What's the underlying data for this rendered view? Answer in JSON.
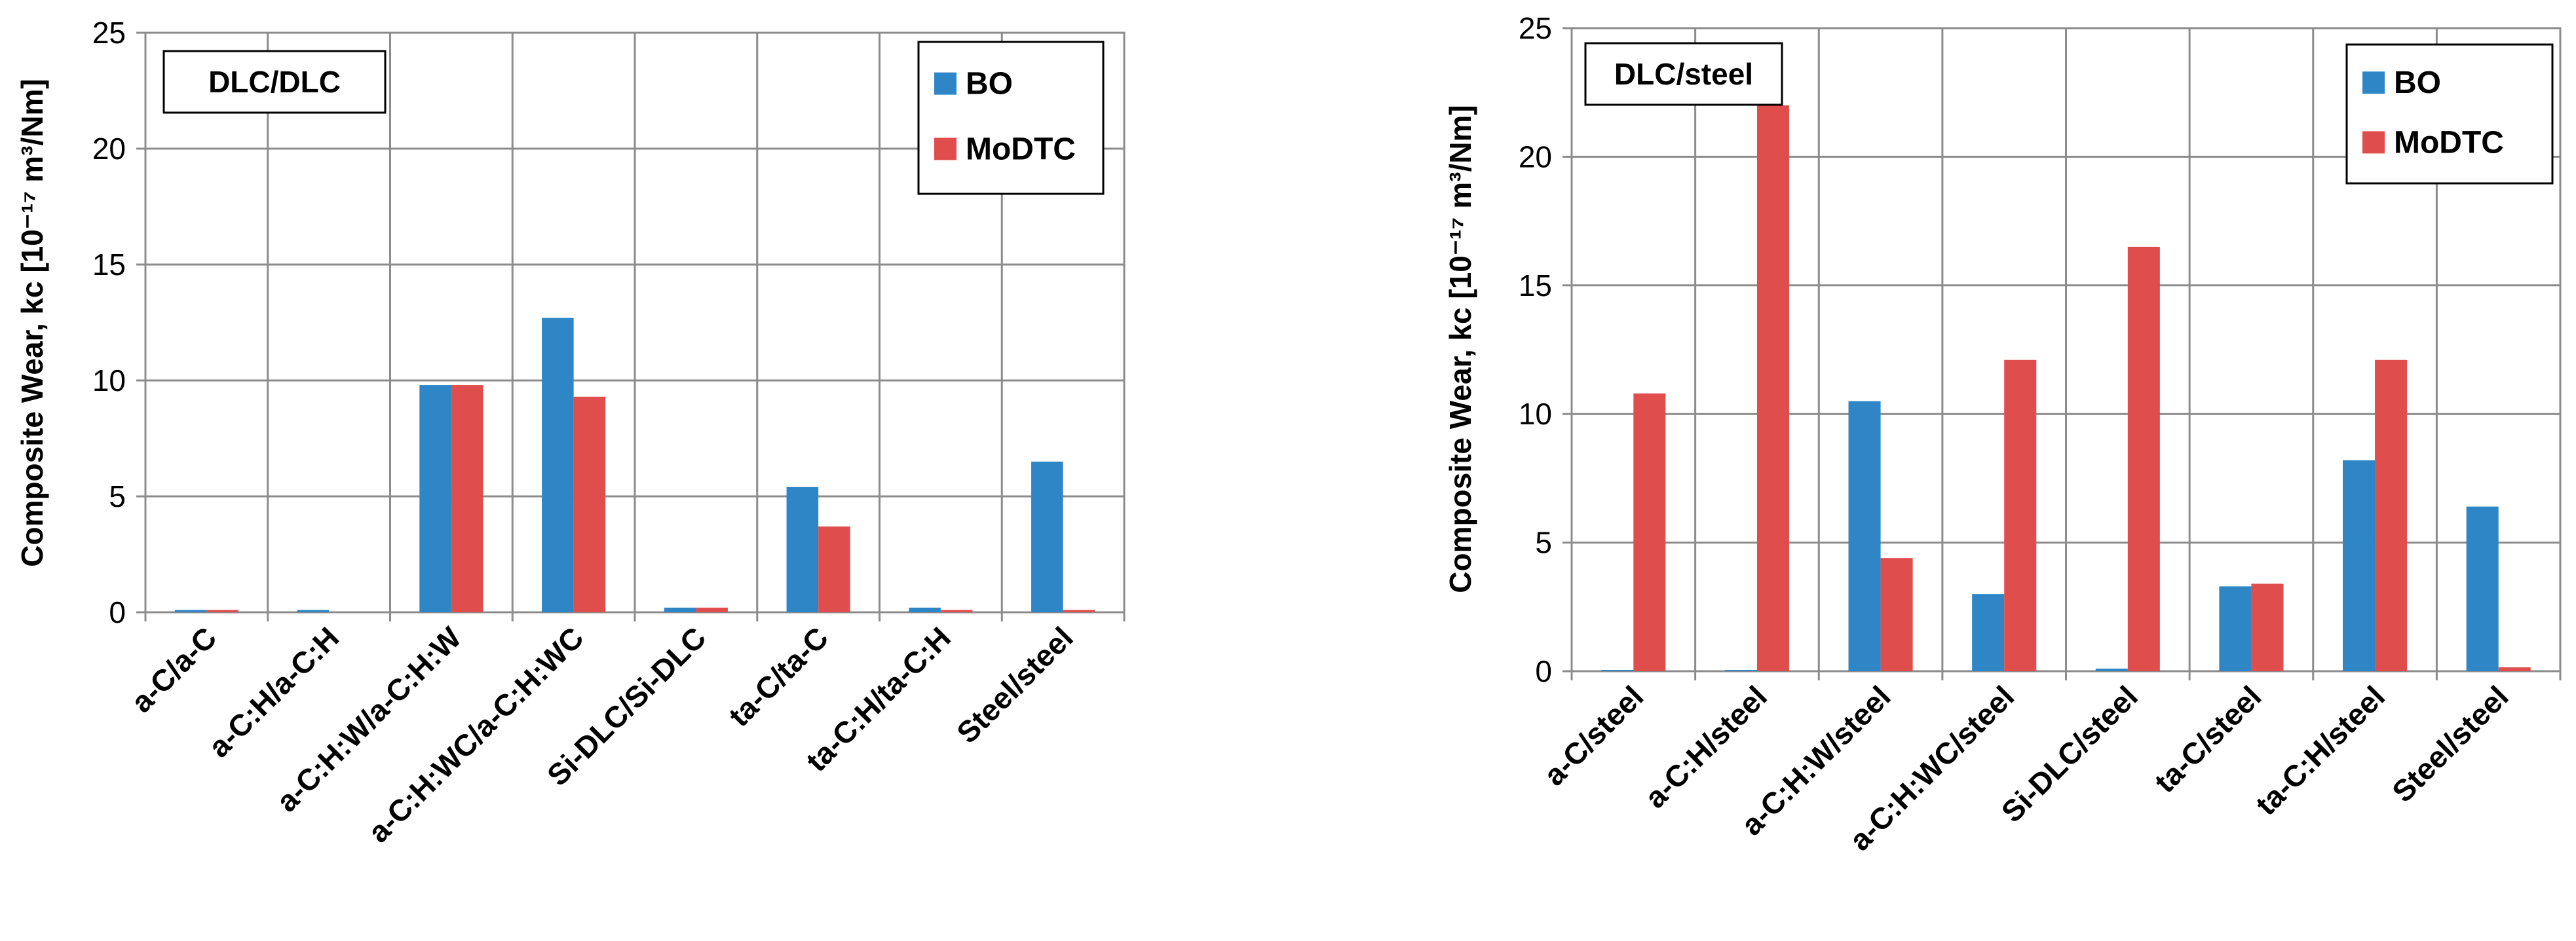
{
  "colors": {
    "BO": "#2e86c7",
    "MoDTC": "#df4e4d"
  },
  "chart_data": [
    {
      "type": "bar",
      "title": "DLC/DLC",
      "ylabel": "Composite Wear, kc [10⁻¹⁷ m³/Nm]",
      "xlabel": "",
      "ylim": [
        0,
        25
      ],
      "yticks": [
        0,
        5,
        10,
        15,
        20,
        25
      ],
      "legend_position": "top-right",
      "grid": true,
      "categories": [
        "a-C/a-C",
        "a-C:H/a-C:H",
        "a-C:H:W/a-C:H:W",
        "a-C:H:WC/a-C:H:WC",
        "Si-DLC/Si-DLC",
        "ta-C/ta-C",
        "ta-C:H/ta-C:H",
        "Steel/steel"
      ],
      "series": [
        {
          "name": "BO",
          "values": [
            0.1,
            0.1,
            9.8,
            12.7,
            0.2,
            5.4,
            0.2,
            6.5
          ]
        },
        {
          "name": "MoDTC",
          "values": [
            0.1,
            0.0,
            9.8,
            9.3,
            0.2,
            3.7,
            0.1,
            0.1
          ]
        }
      ]
    },
    {
      "type": "bar",
      "title": "DLC/steel",
      "ylabel": "Composite Wear, kc [10⁻¹⁷ m³/Nm]",
      "xlabel": "",
      "ylim": [
        0,
        25
      ],
      "yticks": [
        0,
        5,
        10,
        15,
        20,
        25
      ],
      "legend_position": "top-right",
      "grid": true,
      "categories": [
        "a-C/steel",
        "a-C:H/steel",
        "a-C:H:W/steel",
        "a-C:H:WC/steel",
        "Si-DLC/steel",
        "ta-C/steel",
        "ta-C:H/steel",
        "Steel/steel"
      ],
      "series": [
        {
          "name": "BO",
          "values": [
            0.05,
            0.05,
            10.5,
            3.0,
            0.1,
            3.3,
            8.2,
            6.4
          ]
        },
        {
          "name": "MoDTC",
          "values": [
            10.8,
            22.0,
            4.4,
            12.1,
            16.5,
            3.4,
            12.1,
            0.15
          ]
        }
      ]
    }
  ]
}
